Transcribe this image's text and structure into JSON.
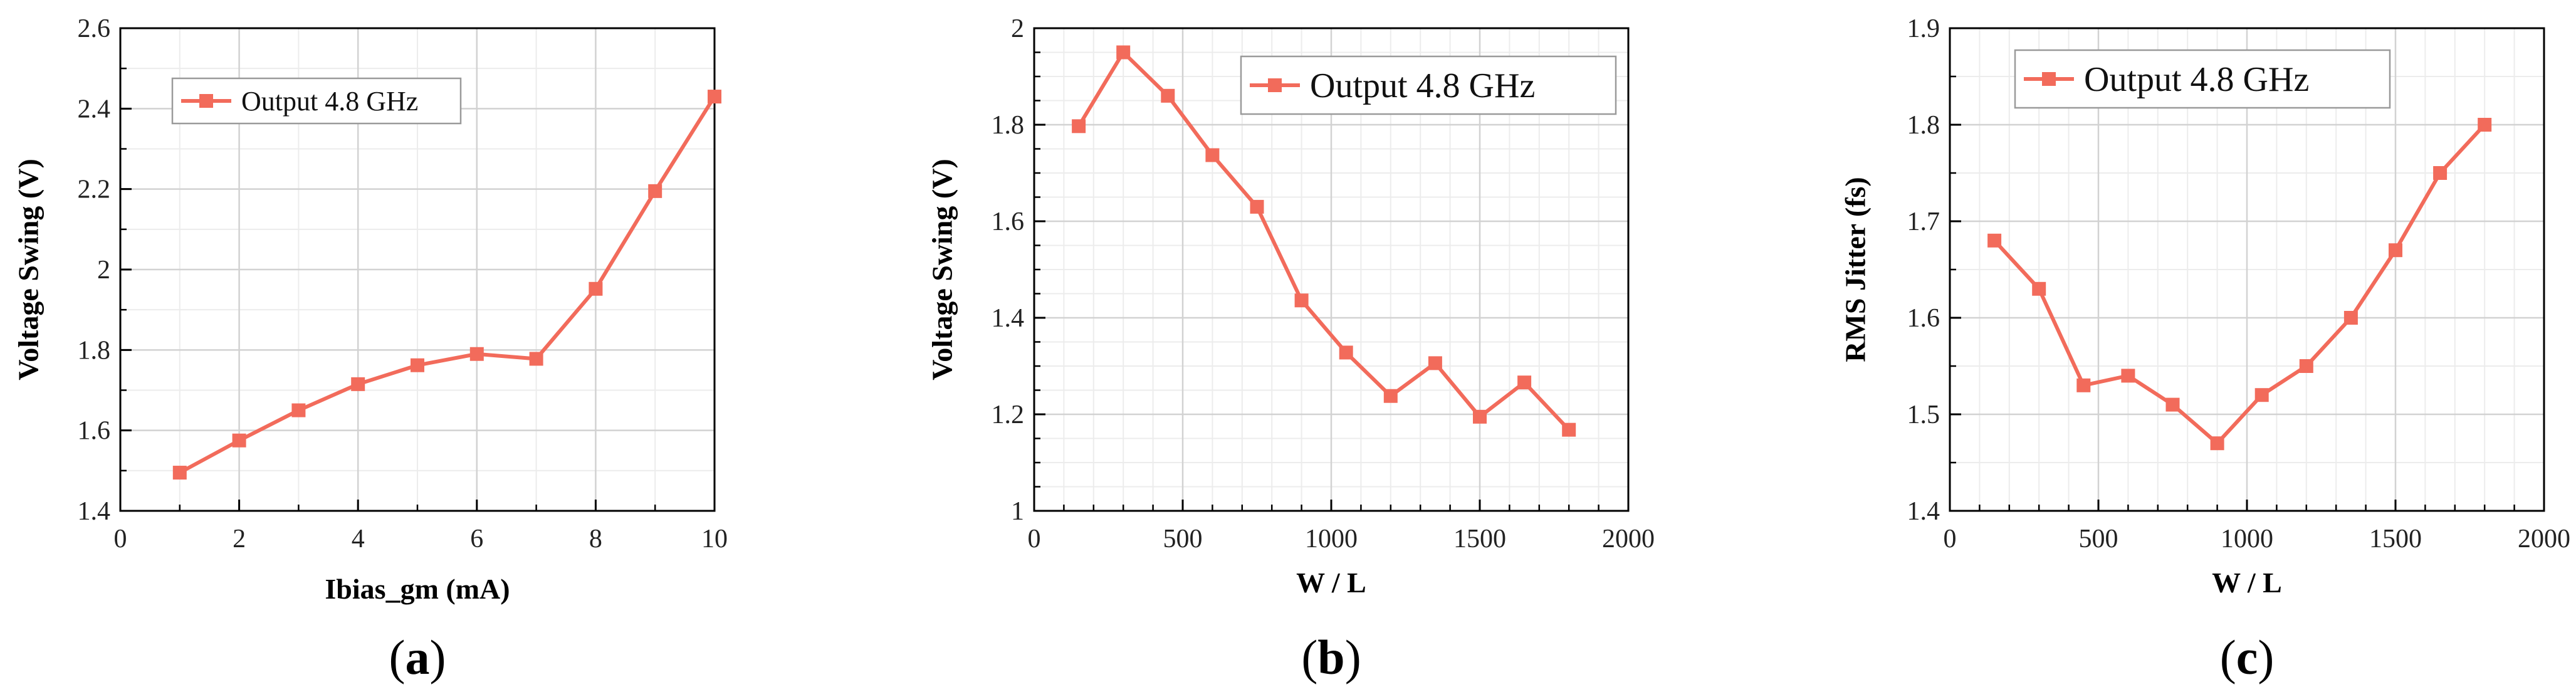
{
  "figure": {
    "background": "#ffffff",
    "series_color": "#f26b5b"
  },
  "chart_data": [
    {
      "type": "line",
      "panel_label": "a",
      "title": "",
      "xlabel": "Ibias_gm (mA)",
      "ylabel": "Voltage Swing (V)",
      "xlim": [
        0,
        10
      ],
      "ylim": [
        1.4,
        2.6
      ],
      "xticks": [
        0,
        2,
        4,
        6,
        8,
        10
      ],
      "yticks": [
        1.4,
        1.6,
        1.8,
        2.0,
        2.2,
        2.4,
        2.6
      ],
      "xtick_labels": [
        "0",
        "2",
        "4",
        "6",
        "8",
        "10"
      ],
      "ytick_labels": [
        "1.4",
        "1.6",
        "1.8",
        "2",
        "2.2",
        "2.4",
        "2.6"
      ],
      "minor_x": 1,
      "minor_y": 0.1,
      "grid": true,
      "legend_position": "top-left",
      "series": [
        {
          "name": "Output 4.8 GHz",
          "marker": "square",
          "x": [
            1,
            2,
            3,
            4,
            5,
            6,
            7,
            8,
            9,
            10
          ],
          "y": [
            1.495,
            1.575,
            1.65,
            1.715,
            1.762,
            1.79,
            1.778,
            1.952,
            2.195,
            2.43
          ]
        }
      ]
    },
    {
      "type": "line",
      "panel_label": "b",
      "title": "",
      "xlabel": "W / L",
      "ylabel": "Voltage Swing (V)",
      "xlim": [
        0,
        2000
      ],
      "ylim": [
        1.0,
        2.0
      ],
      "xticks": [
        0,
        500,
        1000,
        1500,
        2000
      ],
      "yticks": [
        1.0,
        1.2,
        1.4,
        1.6,
        1.8,
        2.0
      ],
      "xtick_labels": [
        "0",
        "500",
        "1000",
        "1500",
        "2000"
      ],
      "ytick_labels": [
        "1",
        "1.2",
        "1.4",
        "1.6",
        "1.8",
        "2"
      ],
      "minor_x": 100,
      "minor_y": 0.05,
      "grid": true,
      "legend_position": "top-right",
      "series": [
        {
          "name": "Output 4.8 GHz",
          "marker": "square",
          "x": [
            150,
            300,
            450,
            600,
            750,
            900,
            1050,
            1200,
            1350,
            1500,
            1650,
            1800
          ],
          "y": [
            1.797,
            1.95,
            1.86,
            1.737,
            1.63,
            1.436,
            1.328,
            1.238,
            1.306,
            1.195,
            1.266,
            1.168
          ]
        }
      ]
    },
    {
      "type": "line",
      "panel_label": "c",
      "title": "",
      "xlabel": "W / L",
      "ylabel": "RMS Jitter (fs)",
      "xlim": [
        0,
        2000
      ],
      "ylim": [
        1.4,
        1.9
      ],
      "xticks": [
        0,
        500,
        1000,
        1500,
        2000
      ],
      "yticks": [
        1.4,
        1.5,
        1.6,
        1.7,
        1.8,
        1.9
      ],
      "xtick_labels": [
        "0",
        "500",
        "1000",
        "1500",
        "2000"
      ],
      "ytick_labels": [
        "1.4",
        "1.5",
        "1.6",
        "1.7",
        "1.8",
        "1.9"
      ],
      "minor_x": 100,
      "minor_y": 0.05,
      "grid": true,
      "legend_position": "top-left",
      "series": [
        {
          "name": "Output 4.8 GHz",
          "marker": "square",
          "x": [
            150,
            300,
            450,
            600,
            750,
            900,
            1050,
            1200,
            1350,
            1500,
            1650,
            1800
          ],
          "y": [
            1.68,
            1.63,
            1.53,
            1.54,
            1.51,
            1.47,
            1.52,
            1.55,
            1.6,
            1.67,
            1.75,
            1.8
          ]
        }
      ]
    }
  ]
}
